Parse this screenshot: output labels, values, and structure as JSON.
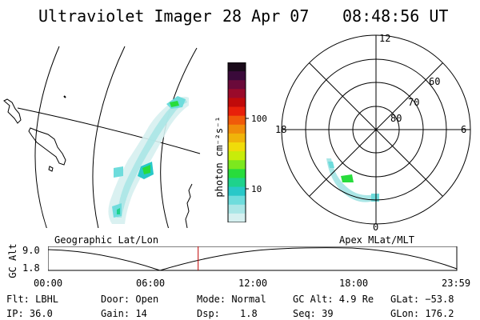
{
  "header": {
    "title": "Ultraviolet Imager",
    "date": "28 Apr 07",
    "time": "08:48:56 UT"
  },
  "colorbar": {
    "label": "photon cm⁻²s⁻¹",
    "ticks": [
      "100",
      "10"
    ],
    "colors": [
      "#1a0a1a",
      "#3a0a3a",
      "#6a0a3a",
      "#9a0a2a",
      "#c00a0a",
      "#e8200a",
      "#f05a0a",
      "#f08c0a",
      "#f0b40a",
      "#f0dc0a",
      "#c8ec0a",
      "#7ce81e",
      "#28dc3c",
      "#1ed28c",
      "#28c8c8",
      "#6edcdc",
      "#aae6e6",
      "#d6f0f0"
    ]
  },
  "polar": {
    "labels": {
      "top": "12",
      "bottom": "0",
      "left": "18",
      "right": "6"
    },
    "lat_labels": [
      "60",
      "70",
      "80"
    ]
  },
  "timeline": {
    "ylabel": "GC Alt",
    "ymax": "9.0",
    "ymin": "1.8",
    "left_label": "Geographic Lat/Lon",
    "right_label": "Apex MLat/MLT",
    "ticks": [
      "00:00",
      "06:00",
      "12:00",
      "18:00",
      "23:59"
    ],
    "current_hour": 8.815
  },
  "info": {
    "flt": "Flt: LBHL",
    "ip": "IP: 36.0",
    "door": "Door: Open",
    "gain": "Gain: 14",
    "mode": "Mode: Normal",
    "dsp_label": "Dsp:",
    "dsp_value": "1.8",
    "gcalt": "GC Alt: 4.9 Re",
    "seq": "Seq: 39",
    "glat": "GLat: −53.8",
    "glon": "GLon: 176.2"
  }
}
